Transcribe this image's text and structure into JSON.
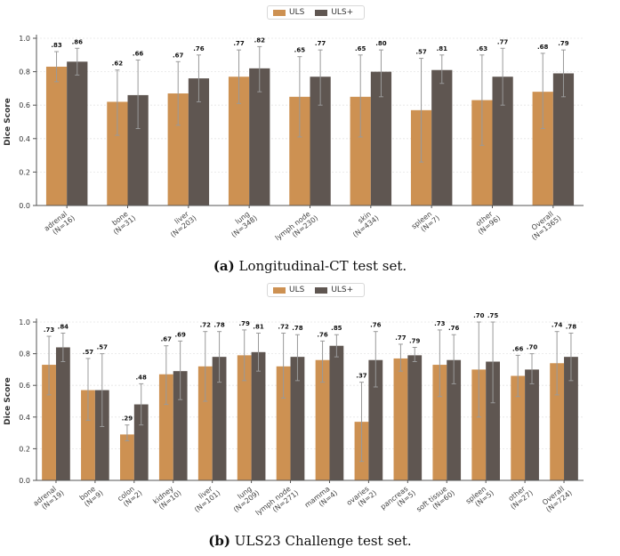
{
  "colors": {
    "uls": "#CD9152",
    "uls_plus": "#5F5651",
    "grid": "#e5e5e5",
    "axis": "#555555",
    "error": "#999999"
  },
  "legend": {
    "uls": "ULS",
    "uls_plus": "ULS+"
  },
  "chart_data": [
    {
      "type": "bar",
      "title": "",
      "ylabel": "Dice Score",
      "xlabel": "",
      "ylim": [
        0,
        1.0
      ],
      "yticks": [
        "0.0",
        "0.2",
        "0.4",
        "0.6",
        "0.8",
        "1.0"
      ],
      "legend_position": "top-center",
      "grid": true,
      "categories": [
        "adrenal\n(N=16)",
        "bone\n(N=31)",
        "liver\n(N=203)",
        "lung\n(N=348)",
        "lymph node\n(N=230)",
        "skin\n(N=434)",
        "spleen\n(N=7)",
        "other\n(N=96)",
        "Overall\n(N=1365)"
      ],
      "series": [
        {
          "name": "ULS",
          "values": [
            0.83,
            0.62,
            0.67,
            0.77,
            0.65,
            0.65,
            0.57,
            0.63,
            0.68
          ],
          "labels": [
            ".83",
            ".62",
            ".67",
            ".77",
            ".65",
            ".65",
            ".57",
            ".63",
            ".68"
          ],
          "err_low": [
            0.74,
            0.42,
            0.48,
            0.61,
            0.41,
            0.41,
            0.26,
            0.36,
            0.46
          ],
          "err_high": [
            0.92,
            0.81,
            0.86,
            0.93,
            0.89,
            0.9,
            0.88,
            0.9,
            0.91
          ]
        },
        {
          "name": "ULS+",
          "values": [
            0.86,
            0.66,
            0.76,
            0.82,
            0.77,
            0.8,
            0.81,
            0.77,
            0.79
          ],
          "labels": [
            ".86",
            ".66",
            ".76",
            ".82",
            ".77",
            ".80",
            ".81",
            ".77",
            ".79"
          ],
          "err_low": [
            0.78,
            0.46,
            0.62,
            0.68,
            0.6,
            0.65,
            0.73,
            0.6,
            0.65
          ],
          "err_high": [
            0.94,
            0.87,
            0.9,
            0.95,
            0.93,
            0.93,
            0.9,
            0.94,
            0.93
          ]
        }
      ],
      "caption_tag": "(a)",
      "caption_text": " Longitudinal-CT test set."
    },
    {
      "type": "bar",
      "title": "",
      "ylabel": "Dice Score",
      "xlabel": "",
      "ylim": [
        0,
        1.0
      ],
      "yticks": [
        "0.0",
        "0.2",
        "0.4",
        "0.6",
        "0.8",
        "1.0"
      ],
      "legend_position": "top-center",
      "grid": true,
      "categories": [
        "adrenal\n(N=19)",
        "bone\n(N=9)",
        "colon\n(N=2)",
        "kidney\n(N=10)",
        "liver\n(N=101)",
        "lung\n(N=209)",
        "lymph node\n(N=271)",
        "mamma\n(N=4)",
        "ovaries\n(N=2)",
        "pancreas\n(N=5)",
        "soft tissue\n(N=60)",
        "spleen\n(N=5)",
        "other\n(N=27)",
        "Overall\n(N=724)"
      ],
      "series": [
        {
          "name": "ULS",
          "values": [
            0.73,
            0.57,
            0.29,
            0.67,
            0.72,
            0.79,
            0.72,
            0.76,
            0.37,
            0.77,
            0.73,
            0.7,
            0.66,
            0.74
          ],
          "labels": [
            ".73",
            ".57",
            ".29",
            ".67",
            ".72",
            ".79",
            ".72",
            ".76",
            ".37",
            ".77",
            ".73",
            ".70",
            ".66",
            ".74"
          ],
          "err_low": [
            0.54,
            0.38,
            0.25,
            0.48,
            0.5,
            0.63,
            0.52,
            0.62,
            0.12,
            0.69,
            0.53,
            0.4,
            0.53,
            0.54
          ],
          "err_high": [
            0.91,
            0.77,
            0.35,
            0.85,
            0.94,
            0.95,
            0.93,
            0.88,
            0.62,
            0.86,
            0.95,
            1.0,
            0.79,
            0.94
          ]
        },
        {
          "name": "ULS+",
          "values": [
            0.84,
            0.57,
            0.48,
            0.69,
            0.78,
            0.81,
            0.78,
            0.85,
            0.76,
            0.79,
            0.76,
            0.75,
            0.7,
            0.78
          ],
          "labels": [
            ".84",
            ".57",
            ".48",
            ".69",
            ".78",
            ".81",
            ".78",
            ".85",
            ".76",
            ".79",
            ".76",
            ".75",
            ".70",
            ".78"
          ],
          "err_low": [
            0.75,
            0.34,
            0.35,
            0.51,
            0.62,
            0.69,
            0.63,
            0.78,
            0.59,
            0.75,
            0.61,
            0.49,
            0.61,
            0.63
          ],
          "err_high": [
            0.93,
            0.8,
            0.61,
            0.88,
            0.94,
            0.93,
            0.92,
            0.92,
            0.94,
            0.84,
            0.92,
            1.0,
            0.8,
            0.93
          ]
        }
      ],
      "caption_tag": "(b)",
      "caption_text": " ULS23 Challenge test set."
    }
  ]
}
